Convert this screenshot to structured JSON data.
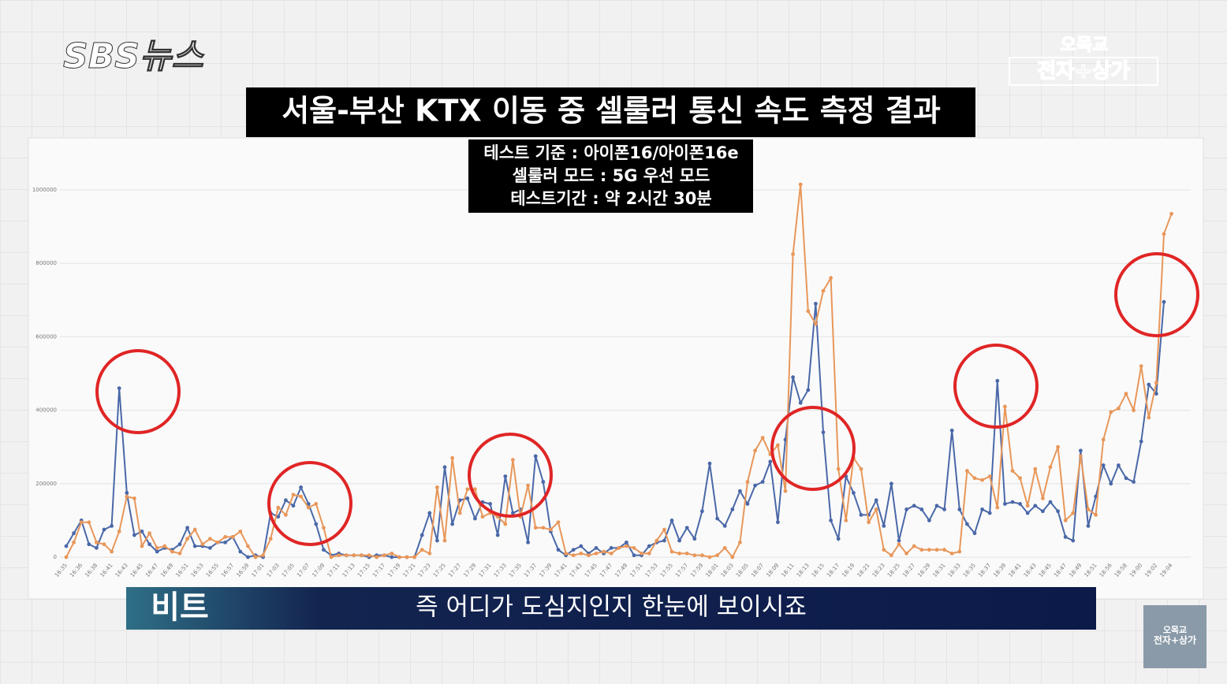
{
  "header": {
    "logo": "SBS뉴스",
    "channel": [
      "오목교",
      "전자+상가"
    ]
  },
  "chart_data": {
    "type": "line",
    "title": "서울-부산 KTX 이동 중 셀룰러 통신 속도 측정 결과",
    "subtitle": [
      "테스트 기준 : 아이폰16/아이폰16e",
      "셀룰러 모드 : 5G 우선 모드",
      "테스트기간 : 약 2시간 30분"
    ],
    "categories": [
      "16:35",
      null,
      "16:36",
      null,
      "16:38",
      null,
      "16:41",
      null,
      "16:43",
      null,
      "16:45",
      null,
      "16:47",
      null,
      "16:49",
      null,
      "16:51",
      null,
      "16:53",
      null,
      "16:55",
      null,
      "16:57",
      null,
      "16:59",
      null,
      "17:01",
      null,
      "17:03",
      null,
      "17:05",
      null,
      "17:07",
      null,
      "17:09",
      null,
      "17:11",
      null,
      "17:13",
      null,
      "17:15",
      null,
      "17:17",
      null,
      "17:19",
      null,
      "17:21",
      null,
      "17:23",
      null,
      "17:25",
      null,
      "17:27",
      null,
      "17:29",
      null,
      "17:31",
      null,
      "17:33",
      null,
      "17:35",
      null,
      "17:37",
      null,
      "17:39",
      null,
      "17:41",
      null,
      "17:43",
      null,
      "17:45",
      null,
      "17:47",
      null,
      "17:49",
      null,
      "17:51",
      null,
      "17:53",
      null,
      "17:55",
      null,
      "17:57",
      null,
      "17:59",
      null,
      "18:01",
      null,
      "18:03",
      null,
      "18:05",
      null,
      "18:07",
      null,
      "18:09",
      null,
      "18:11",
      null,
      "18:13",
      null,
      "18:15",
      null,
      "18:17",
      null,
      "18:19",
      null,
      "18:21",
      null,
      "18:23",
      null,
      "18:25",
      null,
      "18:27",
      null,
      "18:29",
      null,
      "18:31",
      null,
      "18:33",
      null,
      "18:35",
      null,
      "18:37",
      null,
      "18:39",
      null,
      "18:41",
      null,
      "18:43",
      null,
      "18:45",
      null,
      "18:47",
      null,
      "18:49",
      null,
      "18:51",
      null,
      "18:56",
      null,
      "18:58",
      null,
      "19:00",
      null,
      "19:02",
      null,
      "19:04"
    ],
    "series": [
      {
        "color": "#4a68a8",
        "values": [
          30000,
          65000,
          100000,
          35000,
          25000,
          75000,
          85000,
          460000,
          175000,
          60000,
          70000,
          35000,
          15000,
          25000,
          20000,
          35000,
          80000,
          30000,
          30000,
          25000,
          40000,
          40000,
          55000,
          15000,
          0,
          5000,
          0,
          120000,
          110000,
          155000,
          140000,
          190000,
          145000,
          90000,
          20000,
          5000,
          10000,
          5000,
          5000,
          5000,
          0,
          5000,
          5000,
          0,
          0,
          0,
          0,
          60000,
          120000,
          45000,
          245000,
          90000,
          155000,
          160000,
          105000,
          150000,
          145000,
          60000,
          220000,
          120000,
          130000,
          40000,
          275000,
          205000,
          70000,
          20000,
          5000,
          20000,
          30000,
          10000,
          25000,
          10000,
          25000,
          25000,
          40000,
          5000,
          5000,
          30000,
          40000,
          45000,
          100000,
          45000,
          80000,
          50000,
          125000,
          255000,
          105000,
          85000,
          130000,
          180000,
          145000,
          195000,
          205000,
          260000,
          95000,
          320000,
          490000,
          420000,
          455000,
          690000,
          340000,
          100000,
          50000,
          220000,
          175000,
          115000,
          115000,
          155000,
          85000,
          200000,
          45000,
          130000,
          140000,
          130000,
          100000,
          140000,
          130000,
          345000,
          130000,
          90000,
          65000,
          130000,
          120000,
          480000,
          145000,
          150000,
          145000,
          120000,
          140000,
          125000,
          150000,
          125000,
          55000,
          45000,
          290000,
          85000,
          165000,
          250000,
          200000,
          250000,
          215000,
          205000,
          315000,
          470000,
          445000,
          695000,
          null
        ]
      },
      {
        "color": "#e8975a",
        "values": [
          0,
          40000,
          95000,
          95000,
          40000,
          35000,
          15000,
          70000,
          165000,
          160000,
          30000,
          65000,
          25000,
          30000,
          15000,
          10000,
          50000,
          75000,
          35000,
          50000,
          40000,
          55000,
          55000,
          70000,
          30000,
          0,
          5000,
          50000,
          135000,
          115000,
          170000,
          165000,
          135000,
          145000,
          80000,
          0,
          5000,
          5000,
          5000,
          5000,
          5000,
          0,
          5000,
          10000,
          0,
          0,
          0,
          20000,
          10000,
          190000,
          45000,
          270000,
          120000,
          185000,
          185000,
          110000,
          120000,
          110000,
          90000,
          265000,
          110000,
          195000,
          80000,
          80000,
          75000,
          95000,
          10000,
          5000,
          10000,
          5000,
          10000,
          15000,
          10000,
          25000,
          30000,
          25000,
          10000,
          10000,
          45000,
          75000,
          15000,
          10000,
          10000,
          5000,
          5000,
          0,
          5000,
          25000,
          0,
          40000,
          205000,
          290000,
          325000,
          280000,
          305000,
          180000,
          825000,
          1015000,
          670000,
          635000,
          725000,
          760000,
          240000,
          100000,
          270000,
          240000,
          95000,
          130000,
          20000,
          5000,
          35000,
          10000,
          30000,
          20000,
          20000,
          20000,
          20000,
          10000,
          15000,
          235000,
          215000,
          210000,
          220000,
          135000,
          410000,
          235000,
          215000,
          140000,
          240000,
          160000,
          245000,
          300000,
          100000,
          120000,
          275000,
          130000,
          115000,
          320000,
          395000,
          405000,
          445000,
          400000,
          520000,
          380000,
          475000,
          880000,
          935000
        ]
      }
    ],
    "ylim": [
      0,
      1000000
    ],
    "yticks": [
      0,
      200000,
      400000,
      600000,
      800000,
      1000000
    ],
    "grid": true
  },
  "caption": {
    "speaker": "비트",
    "text": "즉 어디가 도심지인지 한눈에 보이시죠"
  }
}
